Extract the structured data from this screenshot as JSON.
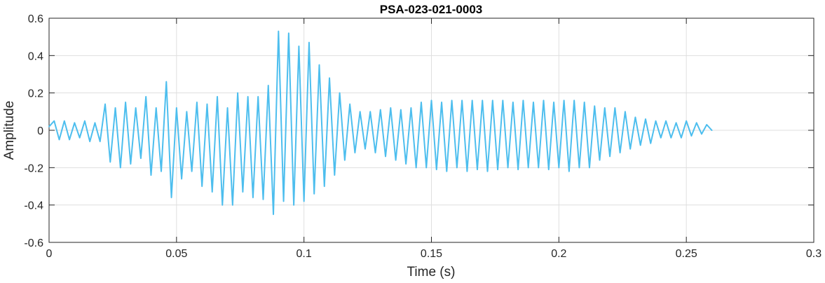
{
  "chart_data": {
    "type": "line",
    "title": "PSA-023-021-0003",
    "xlabel": "Time (s)",
    "ylabel": "Amplitude",
    "xlim": [
      0,
      0.3
    ],
    "ylim": [
      -0.6,
      0.6
    ],
    "xticks": [
      0,
      0.05,
      0.1,
      0.15,
      0.2,
      0.25,
      0.3
    ],
    "xtick_labels": [
      "0",
      "0.05",
      "0.1",
      "0.15",
      "0.2",
      "0.25",
      "0.3"
    ],
    "yticks": [
      -0.6,
      -0.4,
      -0.2,
      0,
      0.2,
      0.4,
      0.6
    ],
    "ytick_labels": [
      "-0.6",
      "-0.4",
      "-0.2",
      "0",
      "0.2",
      "0.4",
      "0.6"
    ],
    "grid": true,
    "legend": "none",
    "series": [
      {
        "color": "#4DBEEE",
        "x": [
          0,
          0.002,
          0.004,
          0.006,
          0.008,
          0.01,
          0.012,
          0.014,
          0.016,
          0.018,
          0.02,
          0.022,
          0.024,
          0.026,
          0.028,
          0.03,
          0.032,
          0.034,
          0.036,
          0.038,
          0.04,
          0.042,
          0.044,
          0.046,
          0.048,
          0.05,
          0.052,
          0.054,
          0.056,
          0.058,
          0.06,
          0.062,
          0.064,
          0.066,
          0.068,
          0.07,
          0.072,
          0.074,
          0.076,
          0.078,
          0.08,
          0.082,
          0.084,
          0.086,
          0.088,
          0.09,
          0.092,
          0.094,
          0.096,
          0.098,
          0.1,
          0.102,
          0.104,
          0.106,
          0.108,
          0.11,
          0.112,
          0.114,
          0.116,
          0.118,
          0.12,
          0.122,
          0.124,
          0.126,
          0.128,
          0.13,
          0.132,
          0.134,
          0.136,
          0.138,
          0.14,
          0.142,
          0.144,
          0.146,
          0.148,
          0.15,
          0.152,
          0.154,
          0.156,
          0.158,
          0.16,
          0.162,
          0.164,
          0.166,
          0.168,
          0.17,
          0.172,
          0.174,
          0.176,
          0.178,
          0.18,
          0.182,
          0.184,
          0.186,
          0.188,
          0.19,
          0.192,
          0.194,
          0.196,
          0.198,
          0.2,
          0.202,
          0.204,
          0.206,
          0.208,
          0.21,
          0.212,
          0.214,
          0.216,
          0.218,
          0.22,
          0.222,
          0.224,
          0.226,
          0.228,
          0.23,
          0.232,
          0.234,
          0.236,
          0.238,
          0.24,
          0.242,
          0.244,
          0.246,
          0.248,
          0.25,
          0.252,
          0.254,
          0.256,
          0.258,
          0.26
        ],
        "y": [
          0.02,
          0.05,
          -0.05,
          0.05,
          -0.05,
          0.04,
          -0.04,
          0.05,
          -0.06,
          0.04,
          -0.06,
          0.14,
          -0.17,
          0.12,
          -0.2,
          0.15,
          -0.18,
          0.12,
          -0.15,
          0.18,
          -0.24,
          0.12,
          -0.22,
          0.26,
          -0.36,
          0.12,
          -0.26,
          0.1,
          -0.22,
          0.15,
          -0.3,
          0.14,
          -0.33,
          0.18,
          -0.4,
          0.12,
          -0.4,
          0.2,
          -0.33,
          0.18,
          -0.36,
          0.18,
          -0.37,
          0.24,
          -0.45,
          0.53,
          -0.38,
          0.52,
          -0.4,
          0.45,
          -0.38,
          0.47,
          -0.34,
          0.35,
          -0.3,
          0.28,
          -0.24,
          0.2,
          -0.16,
          0.14,
          -0.12,
          0.1,
          -0.1,
          0.1,
          -0.12,
          0.11,
          -0.14,
          0.12,
          -0.16,
          0.11,
          -0.18,
          0.12,
          -0.2,
          0.15,
          -0.2,
          0.16,
          -0.21,
          0.15,
          -0.22,
          0.16,
          -0.2,
          0.16,
          -0.22,
          0.16,
          -0.21,
          0.16,
          -0.22,
          0.16,
          -0.21,
          0.16,
          -0.2,
          0.15,
          -0.21,
          0.16,
          -0.2,
          0.15,
          -0.2,
          0.16,
          -0.21,
          0.15,
          -0.2,
          0.16,
          -0.22,
          0.16,
          -0.2,
          0.15,
          -0.2,
          0.13,
          -0.16,
          0.12,
          -0.14,
          0.12,
          -0.12,
          0.1,
          -0.1,
          0.07,
          -0.08,
          0.06,
          -0.07,
          0.05,
          -0.04,
          0.05,
          -0.04,
          0.04,
          -0.04,
          0.05,
          -0.03,
          0.04,
          -0.02,
          0.03,
          0.0
        ]
      }
    ]
  }
}
